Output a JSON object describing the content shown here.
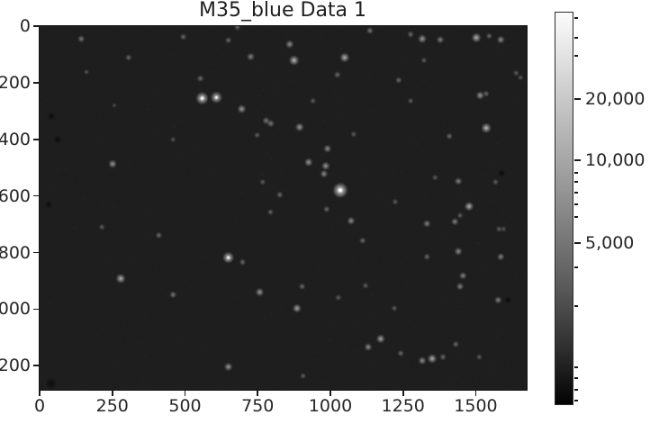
{
  "title": "M35_blue Data 1",
  "axes": {
    "x_tick_labels": [
      "0",
      "250",
      "500",
      "750",
      "1000",
      "1250",
      "1500"
    ],
    "x_tick_values": [
      0,
      250,
      500,
      750,
      1000,
      1250,
      1500
    ],
    "y_tick_labels": [
      "0",
      "200",
      "400",
      "600",
      "800",
      "1000",
      "1200"
    ],
    "y_tick_values": [
      0,
      200,
      400,
      600,
      800,
      1000,
      1200
    ],
    "x_range": [
      0,
      1675
    ],
    "y_range": [
      0,
      1285
    ]
  },
  "colorbar": {
    "tick_labels": [
      "20,000",
      "10,000",
      "5,000"
    ],
    "tick_values": [
      20000,
      10000,
      5000
    ],
    "gradient_top_color": "#fcfcfc",
    "gradient_bottom_color": "#030303"
  },
  "chart_data": {
    "type": "heatmap",
    "title": "M35_blue Data 1",
    "description": "Grayscale astronomical CCD image of the M35 star field (blue filter); bright point sources on a dark background.",
    "x_range": [
      0,
      1675
    ],
    "y_range": [
      0,
      1285
    ],
    "background_color": "#1e1e1e",
    "star_color": "#ffffff",
    "stars_xybr": [
      [
        143,
        45,
        0.45,
        1.7
      ],
      [
        306,
        111,
        0.4,
        1.6
      ],
      [
        161,
        162,
        0.3,
        1.3
      ],
      [
        257,
        280,
        0.28,
        1.2
      ],
      [
        680,
        4,
        0.4,
        1.5
      ],
      [
        494,
        38,
        0.4,
        1.6
      ],
      [
        649,
        50,
        0.4,
        1.6
      ],
      [
        860,
        64,
        0.55,
        2.0
      ],
      [
        726,
        108,
        0.5,
        1.9
      ],
      [
        875,
        121,
        0.75,
        2.4
      ],
      [
        553,
        185,
        0.4,
        1.7
      ],
      [
        559,
        255,
        0.9,
        3.0
      ],
      [
        608,
        252,
        0.82,
        2.8
      ],
      [
        695,
        293,
        0.6,
        2.1
      ],
      [
        779,
        334,
        0.45,
        1.8
      ],
      [
        795,
        344,
        0.45,
        1.8
      ],
      [
        894,
        357,
        0.6,
        2.1
      ],
      [
        940,
        264,
        0.35,
        1.5
      ],
      [
        1024,
        172,
        0.4,
        1.6
      ],
      [
        459,
        401,
        0.3,
        1.4
      ],
      [
        748,
        385,
        0.35,
        1.5
      ],
      [
        1049,
        111,
        0.7,
        2.3
      ],
      [
        1136,
        16,
        0.45,
        1.7
      ],
      [
        1276,
        29,
        0.4,
        1.6
      ],
      [
        1316,
        45,
        0.6,
        2.1
      ],
      [
        1378,
        48,
        0.5,
        1.8
      ],
      [
        1502,
        41,
        0.7,
        2.3
      ],
      [
        1546,
        35,
        0.4,
        1.5
      ],
      [
        1586,
        48,
        0.55,
        1.9
      ],
      [
        1654,
        182,
        0.3,
        1.4
      ],
      [
        1322,
        121,
        0.35,
        1.5
      ],
      [
        1235,
        191,
        0.4,
        1.6
      ],
      [
        1515,
        245,
        0.6,
        2.0
      ],
      [
        1536,
        239,
        0.4,
        1.5
      ],
      [
        1276,
        264,
        0.35,
        1.5
      ],
      [
        1639,
        166,
        0.35,
        1.5
      ],
      [
        1536,
        360,
        0.75,
        2.4
      ],
      [
        1409,
        389,
        0.4,
        1.6
      ],
      [
        1080,
        382,
        0.35,
        1.5
      ],
      [
        251,
        487,
        0.6,
        2.0
      ],
      [
        767,
        551,
        0.35,
        1.5
      ],
      [
        214,
        710,
        0.35,
        1.5
      ],
      [
        410,
        739,
        0.4,
        1.6
      ],
      [
        649,
        818,
        0.85,
        2.7
      ],
      [
        698,
        834,
        0.4,
        1.6
      ],
      [
        279,
        892,
        0.7,
        2.3
      ],
      [
        990,
        433,
        0.55,
        1.9
      ],
      [
        925,
        481,
        0.6,
        2.0
      ],
      [
        984,
        494,
        0.6,
        2.0
      ],
      [
        978,
        522,
        0.55,
        1.9
      ],
      [
        1034,
        580,
        1.0,
        3.6
      ],
      [
        987,
        647,
        0.4,
        1.6
      ],
      [
        794,
        657,
        0.38,
        1.5
      ],
      [
        1071,
        688,
        0.55,
        1.9
      ],
      [
        1223,
        621,
        0.35,
        1.5
      ],
      [
        1111,
        758,
        0.4,
        1.6
      ],
      [
        1332,
        698,
        0.5,
        1.8
      ],
      [
        1360,
        535,
        0.35,
        1.5
      ],
      [
        1440,
        548,
        0.5,
        1.8
      ],
      [
        1477,
        637,
        0.7,
        2.2
      ],
      [
        1446,
        669,
        0.35,
        1.5
      ],
      [
        1428,
        691,
        0.5,
        1.8
      ],
      [
        1568,
        551,
        0.35,
        1.5
      ],
      [
        1580,
        717,
        0.35,
        1.5
      ],
      [
        1596,
        717,
        0.3,
        1.4
      ],
      [
        1440,
        796,
        0.55,
        1.9
      ],
      [
        1332,
        815,
        0.4,
        1.6
      ],
      [
        1586,
        815,
        0.5,
        1.8
      ],
      [
        826,
        596,
        0.4,
        1.6
      ],
      [
        459,
        949,
        0.45,
        1.7
      ],
      [
        757,
        940,
        0.6,
        2.0
      ],
      [
        649,
        1204,
        0.6,
        2.0
      ],
      [
        903,
        920,
        0.4,
        1.6
      ],
      [
        885,
        997,
        0.65,
        2.1
      ],
      [
        1027,
        959,
        0.35,
        1.5
      ],
      [
        1121,
        917,
        0.35,
        1.5
      ],
      [
        1220,
        997,
        0.35,
        1.5
      ],
      [
        1173,
        1105,
        0.65,
        2.1
      ],
      [
        1130,
        1134,
        0.55,
        1.9
      ],
      [
        1242,
        1156,
        0.4,
        1.6
      ],
      [
        1316,
        1182,
        0.55,
        1.9
      ],
      [
        1350,
        1175,
        0.7,
        2.2
      ],
      [
        1387,
        1169,
        0.4,
        1.6
      ],
      [
        1431,
        1124,
        0.4,
        1.6
      ],
      [
        1446,
        920,
        0.5,
        1.8
      ],
      [
        1456,
        882,
        0.5,
        1.8
      ],
      [
        1577,
        968,
        0.5,
        1.8
      ],
      [
        1512,
        1169,
        0.35,
        1.5
      ],
      [
        906,
        1236,
        0.35,
        1.5
      ]
    ],
    "dark_spots_xyr": [
      [
        40,
        318,
        2.6
      ],
      [
        62,
        401,
        2.6
      ],
      [
        31,
        630,
        2.4
      ],
      [
        1589,
        519,
        2.4
      ],
      [
        1611,
        968,
        2.4
      ],
      [
        40,
        1263,
        3.5
      ]
    ]
  }
}
